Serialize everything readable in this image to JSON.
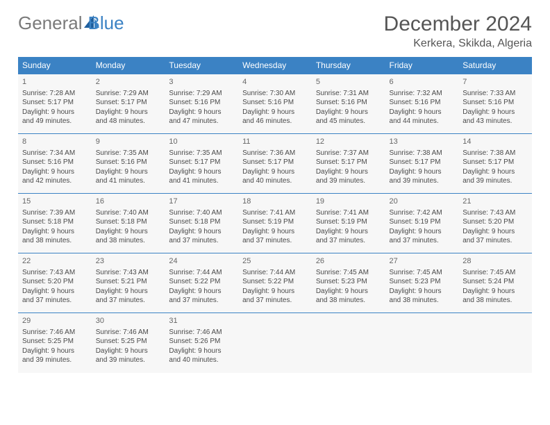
{
  "brand": {
    "general": "General",
    "blue": "Blue"
  },
  "title": "December 2024",
  "location": "Kerkera, Skikda, Algeria",
  "columns": [
    "Sunday",
    "Monday",
    "Tuesday",
    "Wednesday",
    "Thursday",
    "Friday",
    "Saturday"
  ],
  "colors": {
    "header_bg": "#3b82c4",
    "header_text": "#ffffff",
    "cell_bg": "#f7f7f7",
    "cell_border": "#3b82c4",
    "text": "#4a4a4a",
    "title": "#555555",
    "logo_gray": "#7a7a7a",
    "logo_blue": "#3b82c4"
  },
  "weeks": [
    [
      {
        "day": "1",
        "sunrise": "Sunrise: 7:28 AM",
        "sunset": "Sunset: 5:17 PM",
        "dl1": "Daylight: 9 hours",
        "dl2": "and 49 minutes."
      },
      {
        "day": "2",
        "sunrise": "Sunrise: 7:29 AM",
        "sunset": "Sunset: 5:17 PM",
        "dl1": "Daylight: 9 hours",
        "dl2": "and 48 minutes."
      },
      {
        "day": "3",
        "sunrise": "Sunrise: 7:29 AM",
        "sunset": "Sunset: 5:16 PM",
        "dl1": "Daylight: 9 hours",
        "dl2": "and 47 minutes."
      },
      {
        "day": "4",
        "sunrise": "Sunrise: 7:30 AM",
        "sunset": "Sunset: 5:16 PM",
        "dl1": "Daylight: 9 hours",
        "dl2": "and 46 minutes."
      },
      {
        "day": "5",
        "sunrise": "Sunrise: 7:31 AM",
        "sunset": "Sunset: 5:16 PM",
        "dl1": "Daylight: 9 hours",
        "dl2": "and 45 minutes."
      },
      {
        "day": "6",
        "sunrise": "Sunrise: 7:32 AM",
        "sunset": "Sunset: 5:16 PM",
        "dl1": "Daylight: 9 hours",
        "dl2": "and 44 minutes."
      },
      {
        "day": "7",
        "sunrise": "Sunrise: 7:33 AM",
        "sunset": "Sunset: 5:16 PM",
        "dl1": "Daylight: 9 hours",
        "dl2": "and 43 minutes."
      }
    ],
    [
      {
        "day": "8",
        "sunrise": "Sunrise: 7:34 AM",
        "sunset": "Sunset: 5:16 PM",
        "dl1": "Daylight: 9 hours",
        "dl2": "and 42 minutes."
      },
      {
        "day": "9",
        "sunrise": "Sunrise: 7:35 AM",
        "sunset": "Sunset: 5:16 PM",
        "dl1": "Daylight: 9 hours",
        "dl2": "and 41 minutes."
      },
      {
        "day": "10",
        "sunrise": "Sunrise: 7:35 AM",
        "sunset": "Sunset: 5:17 PM",
        "dl1": "Daylight: 9 hours",
        "dl2": "and 41 minutes."
      },
      {
        "day": "11",
        "sunrise": "Sunrise: 7:36 AM",
        "sunset": "Sunset: 5:17 PM",
        "dl1": "Daylight: 9 hours",
        "dl2": "and 40 minutes."
      },
      {
        "day": "12",
        "sunrise": "Sunrise: 7:37 AM",
        "sunset": "Sunset: 5:17 PM",
        "dl1": "Daylight: 9 hours",
        "dl2": "and 39 minutes."
      },
      {
        "day": "13",
        "sunrise": "Sunrise: 7:38 AM",
        "sunset": "Sunset: 5:17 PM",
        "dl1": "Daylight: 9 hours",
        "dl2": "and 39 minutes."
      },
      {
        "day": "14",
        "sunrise": "Sunrise: 7:38 AM",
        "sunset": "Sunset: 5:17 PM",
        "dl1": "Daylight: 9 hours",
        "dl2": "and 39 minutes."
      }
    ],
    [
      {
        "day": "15",
        "sunrise": "Sunrise: 7:39 AM",
        "sunset": "Sunset: 5:18 PM",
        "dl1": "Daylight: 9 hours",
        "dl2": "and 38 minutes."
      },
      {
        "day": "16",
        "sunrise": "Sunrise: 7:40 AM",
        "sunset": "Sunset: 5:18 PM",
        "dl1": "Daylight: 9 hours",
        "dl2": "and 38 minutes."
      },
      {
        "day": "17",
        "sunrise": "Sunrise: 7:40 AM",
        "sunset": "Sunset: 5:18 PM",
        "dl1": "Daylight: 9 hours",
        "dl2": "and 37 minutes."
      },
      {
        "day": "18",
        "sunrise": "Sunrise: 7:41 AM",
        "sunset": "Sunset: 5:19 PM",
        "dl1": "Daylight: 9 hours",
        "dl2": "and 37 minutes."
      },
      {
        "day": "19",
        "sunrise": "Sunrise: 7:41 AM",
        "sunset": "Sunset: 5:19 PM",
        "dl1": "Daylight: 9 hours",
        "dl2": "and 37 minutes."
      },
      {
        "day": "20",
        "sunrise": "Sunrise: 7:42 AM",
        "sunset": "Sunset: 5:19 PM",
        "dl1": "Daylight: 9 hours",
        "dl2": "and 37 minutes."
      },
      {
        "day": "21",
        "sunrise": "Sunrise: 7:43 AM",
        "sunset": "Sunset: 5:20 PM",
        "dl1": "Daylight: 9 hours",
        "dl2": "and 37 minutes."
      }
    ],
    [
      {
        "day": "22",
        "sunrise": "Sunrise: 7:43 AM",
        "sunset": "Sunset: 5:20 PM",
        "dl1": "Daylight: 9 hours",
        "dl2": "and 37 minutes."
      },
      {
        "day": "23",
        "sunrise": "Sunrise: 7:43 AM",
        "sunset": "Sunset: 5:21 PM",
        "dl1": "Daylight: 9 hours",
        "dl2": "and 37 minutes."
      },
      {
        "day": "24",
        "sunrise": "Sunrise: 7:44 AM",
        "sunset": "Sunset: 5:22 PM",
        "dl1": "Daylight: 9 hours",
        "dl2": "and 37 minutes."
      },
      {
        "day": "25",
        "sunrise": "Sunrise: 7:44 AM",
        "sunset": "Sunset: 5:22 PM",
        "dl1": "Daylight: 9 hours",
        "dl2": "and 37 minutes."
      },
      {
        "day": "26",
        "sunrise": "Sunrise: 7:45 AM",
        "sunset": "Sunset: 5:23 PM",
        "dl1": "Daylight: 9 hours",
        "dl2": "and 38 minutes."
      },
      {
        "day": "27",
        "sunrise": "Sunrise: 7:45 AM",
        "sunset": "Sunset: 5:23 PM",
        "dl1": "Daylight: 9 hours",
        "dl2": "and 38 minutes."
      },
      {
        "day": "28",
        "sunrise": "Sunrise: 7:45 AM",
        "sunset": "Sunset: 5:24 PM",
        "dl1": "Daylight: 9 hours",
        "dl2": "and 38 minutes."
      }
    ],
    [
      {
        "day": "29",
        "sunrise": "Sunrise: 7:46 AM",
        "sunset": "Sunset: 5:25 PM",
        "dl1": "Daylight: 9 hours",
        "dl2": "and 39 minutes."
      },
      {
        "day": "30",
        "sunrise": "Sunrise: 7:46 AM",
        "sunset": "Sunset: 5:25 PM",
        "dl1": "Daylight: 9 hours",
        "dl2": "and 39 minutes."
      },
      {
        "day": "31",
        "sunrise": "Sunrise: 7:46 AM",
        "sunset": "Sunset: 5:26 PM",
        "dl1": "Daylight: 9 hours",
        "dl2": "and 40 minutes."
      },
      null,
      null,
      null,
      null
    ]
  ]
}
